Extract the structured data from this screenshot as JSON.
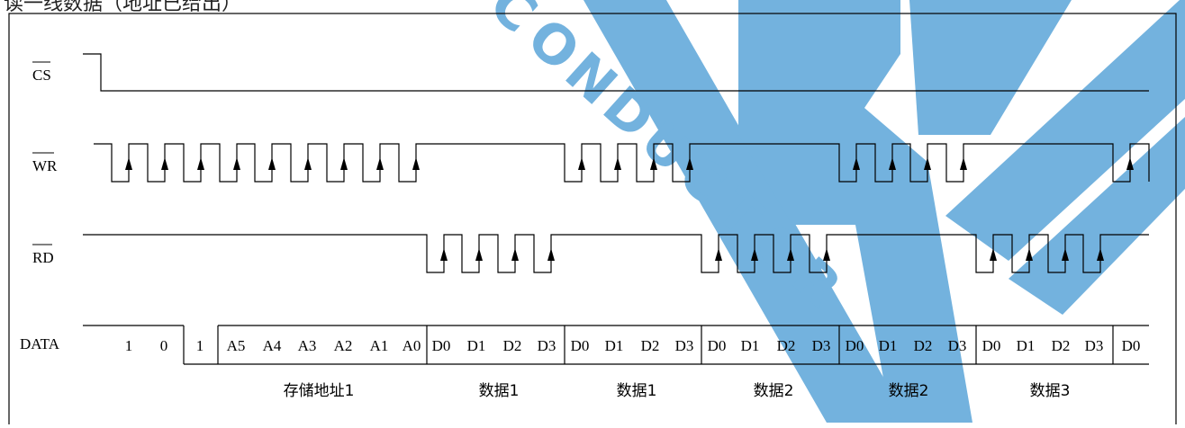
{
  "header_caption": "读一线数据（地址已给出）",
  "signals": {
    "cs": "CS",
    "wr": "WR",
    "rd": "RD",
    "data": "DATA"
  },
  "data_bits": [
    "1",
    "0",
    "1",
    "A5",
    "A4",
    "A3",
    "A2",
    "A1",
    "A0",
    "D0",
    "D1",
    "D2",
    "D3",
    "D0",
    "D1",
    "D2",
    "D3",
    "D0",
    "D1",
    "D2",
    "D3",
    "D0",
    "D1",
    "D2",
    "D3",
    "D0",
    "D1",
    "D2",
    "D3",
    "D0"
  ],
  "group_labels": [
    "存储地址1",
    "数据1",
    "数据1",
    "数据2",
    "数据2",
    "数据3"
  ],
  "watermark": {
    "text": "CONDUCTOR",
    "color": "#5aa5d8"
  },
  "colors": {
    "line": "#000000",
    "frame": "#000000"
  }
}
